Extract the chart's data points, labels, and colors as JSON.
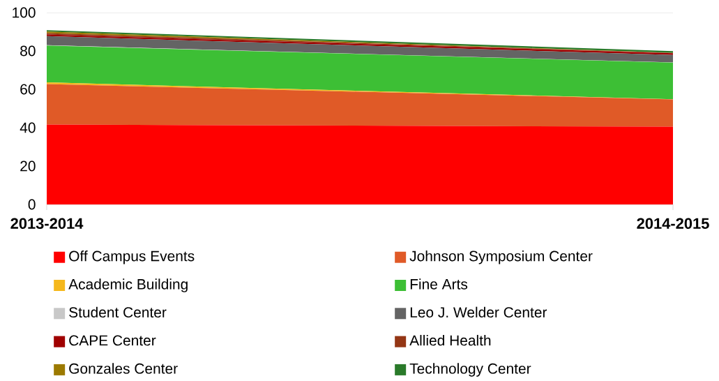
{
  "chart_data": {
    "type": "area",
    "stacked": true,
    "categories": [
      "2013-2014",
      "2014-2015"
    ],
    "ylim": [
      0,
      100
    ],
    "yticks": [
      0,
      20,
      40,
      60,
      80,
      100
    ],
    "ref_lines": [
      {
        "axis": "y",
        "value": 100,
        "color": "#d9d9d9"
      }
    ],
    "legend": "bottom",
    "series": [
      {
        "name": "Off Campus Events",
        "color": "#ff0000",
        "values": [
          41.6,
          40.5
        ]
      },
      {
        "name": "Johnson Symposium Center",
        "color": "#e05a27",
        "values": [
          21.1,
          14.2
        ]
      },
      {
        "name": "Academic Building",
        "color": "#f5b81c",
        "values": [
          0.9,
          0.1
        ]
      },
      {
        "name": "Fine Arts",
        "color": "#3dbf35",
        "values": [
          19.2,
          19.1
        ]
      },
      {
        "name": "Student Center",
        "color": "#c8c8c8",
        "values": [
          0.2,
          0.1
        ]
      },
      {
        "name": "Leo J. Welder Center",
        "color": "#646464",
        "values": [
          4.7,
          3.9
        ]
      },
      {
        "name": "CAPE Center",
        "color": "#a00000",
        "values": [
          0.8,
          0.9
        ]
      },
      {
        "name": "Allied Health",
        "color": "#943615",
        "values": [
          0.8,
          0.1
        ]
      },
      {
        "name": "Gonzales Center",
        "color": "#9c7a00",
        "values": [
          0.8,
          0.1
        ]
      },
      {
        "name": "Technology Center",
        "color": "#2a7a2a",
        "values": [
          0.7,
          0.9
        ]
      }
    ]
  }
}
